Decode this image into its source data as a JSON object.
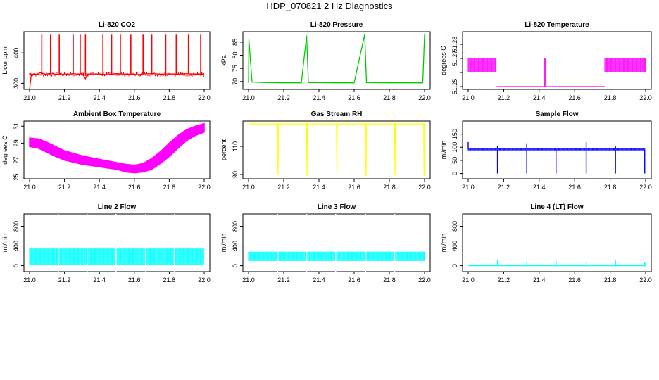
{
  "title": "HDP_070821  2 Hz Diagnostics",
  "chart_data": [
    {
      "type": "line",
      "title": "Li-820 CO2",
      "ylabel": "Licor ppm",
      "color": "#ff0000",
      "xlim": [
        21.0,
        22.0
      ],
      "ylim": [
        280,
        470
      ],
      "xticks": [
        "21.0",
        "21.2",
        "21.4",
        "21.6",
        "21.8",
        "22.0"
      ],
      "yticks": [
        {
          "v": 300,
          "label": "300"
        },
        {
          "v": 400,
          "label": "400"
        }
      ],
      "series": [
        {
          "x": [
            21.0,
            21.01,
            21.05,
            21.06,
            21.09,
            21.12,
            21.15,
            21.18,
            21.2,
            21.22,
            21.25,
            21.28,
            21.3,
            21.32,
            21.33,
            21.35,
            21.4,
            21.45,
            21.5,
            21.55,
            21.6,
            21.62,
            21.65,
            21.7,
            21.75,
            21.8,
            21.85,
            21.9,
            21.95,
            21.99,
            22.0
          ],
          "y": [
            280,
            330,
            330,
            335,
            330,
            332,
            330,
            328,
            331,
            330,
            332,
            330,
            333,
            315,
            330,
            331,
            330,
            329,
            332,
            330,
            330,
            328,
            331,
            332,
            330,
            331,
            330,
            332,
            330,
            330,
            320
          ]
        }
      ],
      "note_spikes": {
        "x": [
          21.07,
          21.12,
          21.17,
          21.25,
          21.29,
          21.32,
          21.42,
          21.47,
          21.52,
          21.58,
          21.65,
          21.7,
          21.78,
          21.84,
          21.91,
          21.98
        ],
        "peak": 460
      }
    },
    {
      "type": "line",
      "title": "Li-820 Pressure",
      "ylabel": "kPa",
      "color": "#00cc00",
      "xlim": [
        21.0,
        22.0
      ],
      "ylim": [
        67,
        89
      ],
      "xticks": [
        "21.0",
        "21.2",
        "21.4",
        "21.6",
        "21.8",
        "22.0"
      ],
      "yticks": [
        {
          "v": 70,
          "label": "70"
        },
        {
          "v": 75,
          "label": "75"
        },
        {
          "v": 80,
          "label": "80"
        },
        {
          "v": 85,
          "label": "85"
        }
      ],
      "series": [
        {
          "x": [
            21.0,
            21.002,
            21.02,
            21.1,
            21.2,
            21.3,
            21.33,
            21.34,
            21.5,
            21.6,
            21.66,
            21.67,
            21.8,
            21.9,
            21.99,
            22.0
          ],
          "y": [
            69.5,
            86,
            69.8,
            69.6,
            69.5,
            69.5,
            87.5,
            69.6,
            69.5,
            69.5,
            88,
            69.6,
            69.5,
            69.5,
            69.5,
            88
          ]
        }
      ]
    },
    {
      "type": "line",
      "title": "Li-820 Temperature",
      "ylabel": "degrees C",
      "color": "#ff00ff",
      "xlim": [
        21.0,
        22.0
      ],
      "ylim": [
        51.248,
        51.289
      ],
      "xticks": [
        "21.0",
        "21.2",
        "21.4",
        "21.6",
        "21.8",
        "22.0"
      ],
      "yticks": [
        {
          "v": 51.25,
          "label": "51.25"
        },
        {
          "v": 51.26,
          "label": ""
        },
        {
          "v": 51.27,
          "label": "51.27"
        },
        {
          "v": 51.28,
          "label": "51.28"
        }
      ],
      "series": [
        {
          "x": [
            21.0,
            21.16
          ],
          "y_low": 51.26,
          "y_high": 51.27
        },
        {
          "x": [
            21.16,
            21.43
          ],
          "y": 51.25
        },
        {
          "x": [
            21.43,
            21.435
          ],
          "y_low": 51.25,
          "y_high": 51.27
        },
        {
          "x": [
            21.435,
            21.77
          ],
          "y": 51.25
        },
        {
          "x": [
            21.77,
            22.0
          ],
          "y_low": 51.26,
          "y_high": 51.27
        }
      ]
    },
    {
      "type": "area",
      "title": "Ambient Box Temperature",
      "ylabel": "degrees C",
      "color": "#ff00ff",
      "xlim": [
        21.0,
        22.0
      ],
      "ylim": [
        24.8,
        31.6
      ],
      "xticks": [
        "21.0",
        "21.2",
        "21.4",
        "21.6",
        "21.8",
        "22.0"
      ],
      "yticks": [
        {
          "v": 25,
          "label": "25"
        },
        {
          "v": 27,
          "label": "27"
        },
        {
          "v": 29,
          "label": "29"
        },
        {
          "v": 31,
          "label": "31"
        }
      ],
      "series": [
        {
          "x": [
            21.0,
            21.05,
            21.1,
            21.15,
            21.2,
            21.3,
            21.4,
            21.5,
            21.55,
            21.6,
            21.65,
            21.7,
            21.75,
            21.8,
            21.85,
            21.9,
            21.95,
            22.0
          ],
          "low": [
            28.6,
            28.4,
            27.9,
            27.4,
            27.0,
            26.5,
            26.2,
            25.9,
            25.6,
            25.5,
            25.6,
            25.9,
            26.6,
            27.4,
            28.4,
            29.3,
            29.9,
            30.3
          ],
          "high": [
            29.6,
            29.5,
            29.1,
            28.6,
            28.1,
            27.5,
            27.1,
            26.7,
            26.5,
            26.4,
            26.6,
            27.2,
            28.0,
            29.0,
            29.9,
            30.6,
            31.0,
            31.3
          ]
        }
      ]
    },
    {
      "type": "line",
      "title": "Gas Stream RH",
      "ylabel": "percent",
      "color": "#ffff00",
      "xlim": [
        21.0,
        22.0
      ],
      "ylim": [
        87,
        128
      ],
      "xticks": [
        "21.0",
        "21.2",
        "21.4",
        "21.6",
        "21.8",
        "22.0"
      ],
      "yticks": [
        {
          "v": 90,
          "label": "90"
        },
        {
          "v": 110,
          "label": "110"
        }
      ],
      "series": [
        {
          "x": [
            21.0,
            21.165,
            21.167,
            21.169,
            21.33,
            21.332,
            21.334,
            21.5,
            21.502,
            21.504,
            21.665,
            21.667,
            21.669,
            21.83,
            21.832,
            21.834,
            21.995,
            21.997,
            22.0
          ],
          "y": [
            126,
            126,
            90,
            126,
            126,
            89,
            126,
            126,
            91,
            126,
            126,
            89,
            126,
            126,
            90,
            126,
            126,
            89,
            126
          ]
        }
      ]
    },
    {
      "type": "line",
      "title": "Sample Flow",
      "ylabel": "ml/min",
      "color": "#0000ff",
      "xlim": [
        21.0,
        22.0
      ],
      "ylim": [
        -20,
        200
      ],
      "xticks": [
        "21.0",
        "21.2",
        "21.4",
        "21.6",
        "21.8",
        "22.0"
      ],
      "yticks": [
        {
          "v": 0,
          "label": "0"
        },
        {
          "v": 50,
          "label": "50"
        },
        {
          "v": 100,
          "label": "100"
        },
        {
          "v": 150,
          "label": "150"
        }
      ],
      "series": [
        {
          "x": [
            21.0,
            22.0
          ],
          "y_low": 88,
          "y_high": 98
        }
      ],
      "dips": [
        21.165,
        21.33,
        21.495,
        21.665,
        21.83,
        21.995
      ],
      "spikes": [
        {
          "x": 21.0,
          "y": 120
        },
        {
          "x": 21.165,
          "y": 105
        },
        {
          "x": 21.33,
          "y": 115
        },
        {
          "x": 21.665,
          "y": 120
        },
        {
          "x": 21.83,
          "y": 105
        }
      ]
    },
    {
      "type": "line",
      "title": "Line 2 Flow",
      "ylabel": "ml/min",
      "color": "#00ffff",
      "xlim": [
        21.0,
        22.0
      ],
      "ylim": [
        -120,
        1050
      ],
      "xticks": [
        "21.0",
        "21.2",
        "21.4",
        "21.6",
        "21.8",
        "22.0"
      ],
      "yticks": [
        {
          "v": 0,
          "label": "0"
        },
        {
          "v": 400,
          "label": "400"
        },
        {
          "v": 800,
          "label": "800"
        }
      ],
      "series": [
        {
          "x": [
            21.0,
            22.0
          ],
          "y_low": 20,
          "y_high": 350
        }
      ],
      "gaps": [
        21.165,
        21.33,
        21.495,
        21.665,
        21.83
      ]
    },
    {
      "type": "line",
      "title": "Line 3 Flow",
      "ylabel": "ml/min",
      "color": "#00ffff",
      "xlim": [
        21.0,
        22.0
      ],
      "ylim": [
        -120,
        1050
      ],
      "xticks": [
        "21.0",
        "21.2",
        "21.4",
        "21.6",
        "21.8",
        "22.0"
      ],
      "yticks": [
        {
          "v": 0,
          "label": "0"
        },
        {
          "v": 400,
          "label": "400"
        },
        {
          "v": 800,
          "label": "800"
        }
      ],
      "series": [
        {
          "x": [
            21.0,
            22.0
          ],
          "y_low": 95,
          "y_high": 285
        }
      ],
      "gaps": [
        21.165,
        21.33,
        21.495,
        21.665,
        21.83
      ]
    },
    {
      "type": "line",
      "title": "Line 4 (LT) Flow",
      "ylabel": "ml/min",
      "color": "#00ffff",
      "xlim": [
        21.0,
        22.0
      ],
      "ylim": [
        -120,
        1050
      ],
      "xticks": [
        "21.0",
        "21.2",
        "21.4",
        "21.6",
        "21.8",
        "22.0"
      ],
      "yticks": [
        {
          "v": 0,
          "label": "0"
        },
        {
          "v": 400,
          "label": "400"
        },
        {
          "v": 800,
          "label": "800"
        }
      ],
      "series": [
        {
          "x": [
            21.0,
            22.0
          ],
          "y": 0
        }
      ],
      "spikes": [
        {
          "x": 21.165,
          "y": 110
        },
        {
          "x": 21.33,
          "y": 75
        },
        {
          "x": 21.495,
          "y": 110
        },
        {
          "x": 21.665,
          "y": 80
        },
        {
          "x": 21.83,
          "y": 110
        },
        {
          "x": 21.995,
          "y": 70
        }
      ]
    }
  ]
}
